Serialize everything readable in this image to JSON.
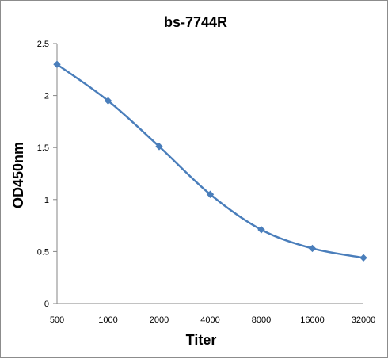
{
  "chart_data": {
    "type": "line",
    "title": "bs-7744R",
    "xlabel": "Titer",
    "ylabel": "OD450nm",
    "categories": [
      "500",
      "1000",
      "2000",
      "4000",
      "8000",
      "16000",
      "32000"
    ],
    "series": [
      {
        "values": [
          2.3,
          1.95,
          1.51,
          1.05,
          0.71,
          0.53,
          0.44
        ],
        "color": "#4a7ebb"
      }
    ],
    "ylim": [
      0,
      2.5
    ],
    "yticks": [
      "0",
      "0.5",
      "1",
      "1.5",
      "2",
      "2.5"
    ],
    "grid": false,
    "legend": "none",
    "marker": "diamond"
  }
}
